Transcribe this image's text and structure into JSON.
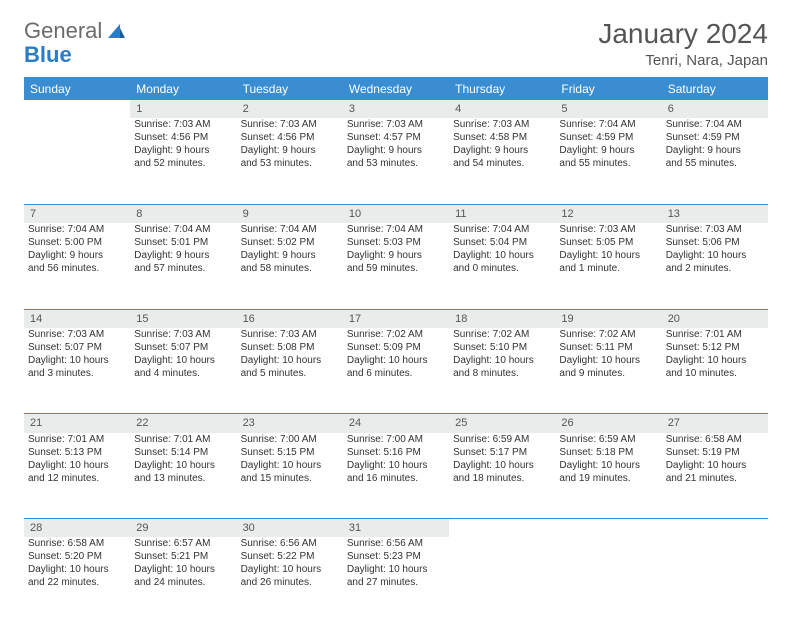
{
  "logo": {
    "part1": "General",
    "part2": "Blue"
  },
  "title": "January 2024",
  "location": "Tenri, Nara, Japan",
  "colors": {
    "header_bg": "#3a8dd0",
    "daynum_bg": "#e9eceb",
    "rule": "#3a8dd0",
    "text": "#333333"
  },
  "weekdays": [
    "Sunday",
    "Monday",
    "Tuesday",
    "Wednesday",
    "Thursday",
    "Friday",
    "Saturday"
  ],
  "weeks": [
    {
      "days": [
        {
          "num": "",
          "lines": [
            "",
            "",
            "",
            ""
          ]
        },
        {
          "num": "1",
          "lines": [
            "Sunrise: 7:03 AM",
            "Sunset: 4:56 PM",
            "Daylight: 9 hours",
            "and 52 minutes."
          ]
        },
        {
          "num": "2",
          "lines": [
            "Sunrise: 7:03 AM",
            "Sunset: 4:56 PM",
            "Daylight: 9 hours",
            "and 53 minutes."
          ]
        },
        {
          "num": "3",
          "lines": [
            "Sunrise: 7:03 AM",
            "Sunset: 4:57 PM",
            "Daylight: 9 hours",
            "and 53 minutes."
          ]
        },
        {
          "num": "4",
          "lines": [
            "Sunrise: 7:03 AM",
            "Sunset: 4:58 PM",
            "Daylight: 9 hours",
            "and 54 minutes."
          ]
        },
        {
          "num": "5",
          "lines": [
            "Sunrise: 7:04 AM",
            "Sunset: 4:59 PM",
            "Daylight: 9 hours",
            "and 55 minutes."
          ]
        },
        {
          "num": "6",
          "lines": [
            "Sunrise: 7:04 AM",
            "Sunset: 4:59 PM",
            "Daylight: 9 hours",
            "and 55 minutes."
          ]
        }
      ]
    },
    {
      "days": [
        {
          "num": "7",
          "lines": [
            "Sunrise: 7:04 AM",
            "Sunset: 5:00 PM",
            "Daylight: 9 hours",
            "and 56 minutes."
          ]
        },
        {
          "num": "8",
          "lines": [
            "Sunrise: 7:04 AM",
            "Sunset: 5:01 PM",
            "Daylight: 9 hours",
            "and 57 minutes."
          ]
        },
        {
          "num": "9",
          "lines": [
            "Sunrise: 7:04 AM",
            "Sunset: 5:02 PM",
            "Daylight: 9 hours",
            "and 58 minutes."
          ]
        },
        {
          "num": "10",
          "lines": [
            "Sunrise: 7:04 AM",
            "Sunset: 5:03 PM",
            "Daylight: 9 hours",
            "and 59 minutes."
          ]
        },
        {
          "num": "11",
          "lines": [
            "Sunrise: 7:04 AM",
            "Sunset: 5:04 PM",
            "Daylight: 10 hours",
            "and 0 minutes."
          ]
        },
        {
          "num": "12",
          "lines": [
            "Sunrise: 7:03 AM",
            "Sunset: 5:05 PM",
            "Daylight: 10 hours",
            "and 1 minute."
          ]
        },
        {
          "num": "13",
          "lines": [
            "Sunrise: 7:03 AM",
            "Sunset: 5:06 PM",
            "Daylight: 10 hours",
            "and 2 minutes."
          ]
        }
      ]
    },
    {
      "days": [
        {
          "num": "14",
          "lines": [
            "Sunrise: 7:03 AM",
            "Sunset: 5:07 PM",
            "Daylight: 10 hours",
            "and 3 minutes."
          ]
        },
        {
          "num": "15",
          "lines": [
            "Sunrise: 7:03 AM",
            "Sunset: 5:07 PM",
            "Daylight: 10 hours",
            "and 4 minutes."
          ]
        },
        {
          "num": "16",
          "lines": [
            "Sunrise: 7:03 AM",
            "Sunset: 5:08 PM",
            "Daylight: 10 hours",
            "and 5 minutes."
          ]
        },
        {
          "num": "17",
          "lines": [
            "Sunrise: 7:02 AM",
            "Sunset: 5:09 PM",
            "Daylight: 10 hours",
            "and 6 minutes."
          ]
        },
        {
          "num": "18",
          "lines": [
            "Sunrise: 7:02 AM",
            "Sunset: 5:10 PM",
            "Daylight: 10 hours",
            "and 8 minutes."
          ]
        },
        {
          "num": "19",
          "lines": [
            "Sunrise: 7:02 AM",
            "Sunset: 5:11 PM",
            "Daylight: 10 hours",
            "and 9 minutes."
          ]
        },
        {
          "num": "20",
          "lines": [
            "Sunrise: 7:01 AM",
            "Sunset: 5:12 PM",
            "Daylight: 10 hours",
            "and 10 minutes."
          ]
        }
      ]
    },
    {
      "days": [
        {
          "num": "21",
          "lines": [
            "Sunrise: 7:01 AM",
            "Sunset: 5:13 PM",
            "Daylight: 10 hours",
            "and 12 minutes."
          ]
        },
        {
          "num": "22",
          "lines": [
            "Sunrise: 7:01 AM",
            "Sunset: 5:14 PM",
            "Daylight: 10 hours",
            "and 13 minutes."
          ]
        },
        {
          "num": "23",
          "lines": [
            "Sunrise: 7:00 AM",
            "Sunset: 5:15 PM",
            "Daylight: 10 hours",
            "and 15 minutes."
          ]
        },
        {
          "num": "24",
          "lines": [
            "Sunrise: 7:00 AM",
            "Sunset: 5:16 PM",
            "Daylight: 10 hours",
            "and 16 minutes."
          ]
        },
        {
          "num": "25",
          "lines": [
            "Sunrise: 6:59 AM",
            "Sunset: 5:17 PM",
            "Daylight: 10 hours",
            "and 18 minutes."
          ]
        },
        {
          "num": "26",
          "lines": [
            "Sunrise: 6:59 AM",
            "Sunset: 5:18 PM",
            "Daylight: 10 hours",
            "and 19 minutes."
          ]
        },
        {
          "num": "27",
          "lines": [
            "Sunrise: 6:58 AM",
            "Sunset: 5:19 PM",
            "Daylight: 10 hours",
            "and 21 minutes."
          ]
        }
      ]
    },
    {
      "days": [
        {
          "num": "28",
          "lines": [
            "Sunrise: 6:58 AM",
            "Sunset: 5:20 PM",
            "Daylight: 10 hours",
            "and 22 minutes."
          ]
        },
        {
          "num": "29",
          "lines": [
            "Sunrise: 6:57 AM",
            "Sunset: 5:21 PM",
            "Daylight: 10 hours",
            "and 24 minutes."
          ]
        },
        {
          "num": "30",
          "lines": [
            "Sunrise: 6:56 AM",
            "Sunset: 5:22 PM",
            "Daylight: 10 hours",
            "and 26 minutes."
          ]
        },
        {
          "num": "31",
          "lines": [
            "Sunrise: 6:56 AM",
            "Sunset: 5:23 PM",
            "Daylight: 10 hours",
            "and 27 minutes."
          ]
        },
        {
          "num": "",
          "lines": [
            "",
            "",
            "",
            ""
          ]
        },
        {
          "num": "",
          "lines": [
            "",
            "",
            "",
            ""
          ]
        },
        {
          "num": "",
          "lines": [
            "",
            "",
            "",
            ""
          ]
        }
      ]
    }
  ]
}
